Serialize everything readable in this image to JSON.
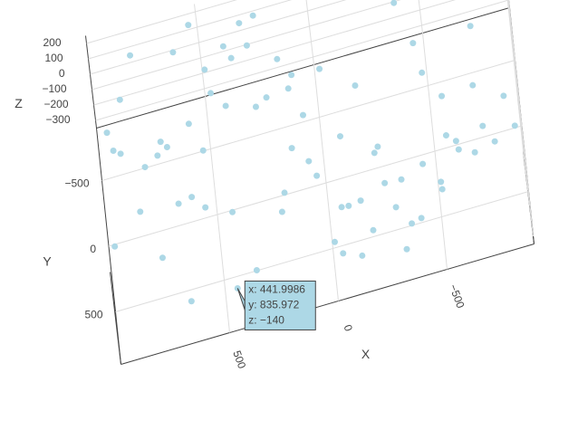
{
  "chart_data": {
    "type": "scatter3d",
    "color": "#add8e6",
    "x_title": "X",
    "y_title": "Y",
    "z_title": "Z",
    "xlim": [
      -900,
      1000
    ],
    "ylim": [
      -900,
      900
    ],
    "zlim": [
      -350,
      250
    ],
    "xticks": [
      {
        "value": -500,
        "label": "−500"
      },
      0,
      500
    ],
    "yticks": [
      {
        "value": -500,
        "label": "−500"
      },
      0,
      500
    ],
    "zticks": [
      {
        "value": -300,
        "label": "−300"
      },
      {
        "value": -200,
        "label": "−200"
      },
      {
        "value": -100,
        "label": "−100"
      },
      0,
      100,
      200
    ],
    "grid": true,
    "x": [
      812,
      -340,
      120,
      655,
      -720,
      430,
      -95,
      278,
      -560,
      901,
      33,
      -812,
      547,
      -230,
      760,
      -455,
      189,
      -640,
      350,
      -28,
      970,
      -390,
      605,
      -150,
      71,
      -705,
      488,
      -265,
      843,
      -518,
      224,
      -870,
      392,
      -60,
      715,
      -330,
      158,
      -602,
      537,
      -190,
      931,
      -440,
      286,
      -775,
      620,
      -12,
      469,
      -560,
      104,
      -305,
      798,
      -680,
      361,
      -128,
      582,
      -835,
      245,
      -410,
      690,
      -45,
      877,
      -250,
      412,
      -730,
      135,
      -520,
      740,
      -88,
      310,
      -610,
      951,
      -365,
      530,
      -175,
      62,
      -790,
      665,
      -480,
      205,
      441.9986
    ],
    "y": [
      -812,
      455,
      -120,
      703,
      -390,
      238,
      842,
      -655,
      90,
      -270,
      610,
      -880,
      345,
      -35,
      790,
      -505,
      160,
      -730,
      520,
      -210,
      380,
      -620,
      15,
      700,
      -445,
      265,
      -805,
      575,
      -140,
      840,
      -360,
      125,
      -690,
      460,
      -25,
      735,
      -550,
      300,
      -770,
      640,
      -190,
      80,
      -610,
      410,
      -860,
      550,
      -300,
      190,
      -720,
      860,
      -95,
      330,
      -480,
      675,
      -250,
      45,
      -830,
      595,
      -160,
      770,
      -400,
      220,
      -680,
      505,
      -60,
      815,
      -530,
      145,
      -745,
      380,
      -290,
      650,
      -10,
      -575,
      485,
      -870,
      260,
      -420,
      720,
      835.972
    ],
    "z": [
      120,
      -80,
      210,
      -250,
      40,
      -160,
      180,
      -300,
      60,
      -20,
      230,
      -120,
      10,
      -280,
      150,
      -60,
      -200,
      90,
      -330,
      200,
      -40,
      130,
      -180,
      70,
      -260,
      220,
      -100,
      30,
      -310,
      160,
      -10,
      -230,
      110,
      -140,
      190,
      -290,
      50,
      -70,
      240,
      -190,
      80,
      -340,
      140,
      -50,
      20,
      -270,
      170,
      -110,
      -220,
      100,
      0,
      -150,
      200,
      -300,
      60,
      -90,
      130,
      -240,
      30,
      -170,
      210,
      -30,
      -260,
      150,
      -120,
      90,
      -320,
      40,
      180,
      -60,
      120,
      -210,
      70,
      -280,
      230,
      -100,
      10,
      -190,
      160,
      -140
    ],
    "hover": [
      "x: 441.9986",
      "y: 835.972",
      "z: −140"
    ]
  }
}
